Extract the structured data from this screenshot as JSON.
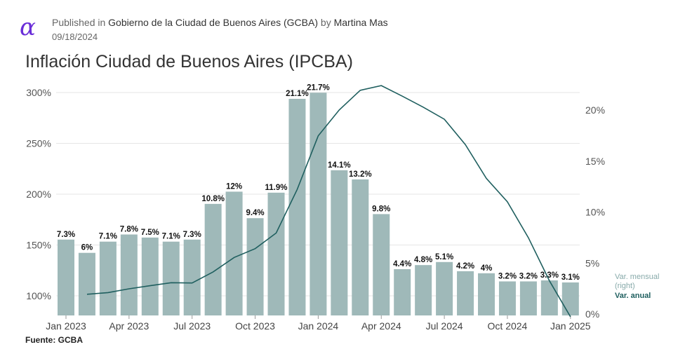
{
  "header": {
    "published_prefix": "Published in",
    "publisher": "Gobierno de la Ciudad de Buenos Aires (GCBA)",
    "by": "by",
    "author": "Martina Mas",
    "date": "09/18/2024"
  },
  "source": "Fuente: GCBA",
  "colors": {
    "bar": "#9fb9b9",
    "line": "#1f5f5f",
    "logo": "#6a2ed8"
  },
  "chart_data": {
    "type": "bar",
    "title": "Inflación Ciudad de Buenos Aires (IPCBA)",
    "categories": [
      "Jan 2023",
      "Feb 2023",
      "Mar 2023",
      "Apr 2023",
      "May 2023",
      "Jun 2023",
      "Jul 2023",
      "Aug 2023",
      "Sep 2023",
      "Oct 2023",
      "Nov 2023",
      "Dec 2023",
      "Jan 2024",
      "Feb 2024",
      "Mar 2024",
      "Apr 2024",
      "May 2024",
      "Jun 2024",
      "Jul 2024",
      "Aug 2024",
      "Sep 2024",
      "Oct 2024",
      "Nov 2024",
      "Dec 2024",
      "Jan 2025"
    ],
    "x_tick_labels": [
      "Jan 2023",
      "Apr 2023",
      "Jul 2023",
      "Oct 2023",
      "Jan 2024",
      "Apr 2024",
      "Jul 2024",
      "Oct 2024",
      "Jan 2025"
    ],
    "series": [
      {
        "name": "Var. mensual (right)",
        "axis": "right",
        "values": [
          7.3,
          6.0,
          7.1,
          7.8,
          7.5,
          7.1,
          7.3,
          10.8,
          12.0,
          9.4,
          11.9,
          21.1,
          21.7,
          14.1,
          13.2,
          9.8,
          4.4,
          4.8,
          5.1,
          4.2,
          4.0,
          3.2,
          3.2,
          3.3,
          3.1
        ],
        "labels": [
          "7.3%",
          "6%",
          "7.1%",
          "7.8%",
          "7.5%",
          "7.1%",
          "7.3%",
          "10.8%",
          "12%",
          "9.4%",
          "11.9%",
          "21.1%",
          "21.7%",
          "14.1%",
          "13.2%",
          "9.8%",
          "4.4%",
          "4.8%",
          "5.1%",
          "4.2%",
          "4%",
          "3.2%",
          "3.2%",
          "3.3%",
          "3.1%"
        ]
      },
      {
        "name": "Var. anual",
        "axis": "left",
        "type": "line",
        "values": [
          null,
          101.5,
          103.2,
          106.9,
          109.9,
          112.9,
          112.6,
          123.5,
          137.7,
          146.4,
          161.8,
          204.6,
          257.4,
          282.8,
          302.2,
          306.8,
          296.4,
          285.6,
          273.7,
          248.8,
          215.5,
          192.5,
          157.1,
          114.7,
          79.4
        ]
      }
    ],
    "y_left": {
      "ticks": [
        "100%",
        "150%",
        "200%",
        "250%",
        "300%"
      ],
      "ylim": [
        100,
        300
      ]
    },
    "y_right": {
      "ticks": [
        "0%",
        "5%",
        "10%",
        "15%",
        "20%"
      ],
      "ylim": [
        0,
        20
      ]
    },
    "legend": [
      {
        "label": "Var. mensual (right)"
      },
      {
        "label": "Var. anual"
      }
    ]
  }
}
